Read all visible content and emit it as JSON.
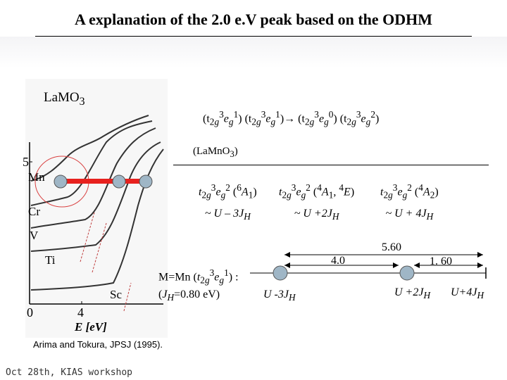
{
  "title": "A explanation of the 2.0 e.V peak based on the ODHM",
  "figure": {
    "compound_label": "LaMO",
    "compound_sub": "3",
    "y_tick_5": "5",
    "x_tick_0": "0",
    "x_tick_4": "4",
    "x_axis_label": "E [eV]",
    "curve_labels": [
      "Mn",
      "Cr",
      "V",
      "Ti",
      "Sc"
    ]
  },
  "sequence": {
    "labels": [
      "(t2g3eg1) (t2g3eg1)",
      "→",
      "(t2g3eg0) (t2g3eg2)"
    ]
  },
  "lamno3_label": "(LaMn",
  "lamno3_sub": "3",
  "lamno3_close": ")",
  "states": [
    {
      "config": "t2g3eg2",
      "term": "(6A1)",
      "energy": "~ U – 3JH"
    },
    {
      "config": "t2g3eg2",
      "term": "(4A1, 4E)",
      "energy": "~ U +2JH"
    },
    {
      "config": "t2g3eg2",
      "term": "(4A2)",
      "energy": "~ U + 4JH"
    }
  ],
  "mn_box": {
    "line1": "M=Mn (t2g3eg1) :",
    "line2": "(JH=0.80 eV)"
  },
  "energy_diagram": {
    "gap_1": "4.0",
    "gap_2": "5.60",
    "gap_3": "1. 60",
    "level_labels": [
      "U -3JH",
      "U +2JH",
      "U+4JH"
    ]
  },
  "citation": "Arima and Tokura, JPSJ (1995).",
  "footer": "Oct 28th, KIAS workshop",
  "colors": {
    "highlight_bar": "#e8211e",
    "circle": "#d94040",
    "node_fill": "#9fb6c6"
  }
}
